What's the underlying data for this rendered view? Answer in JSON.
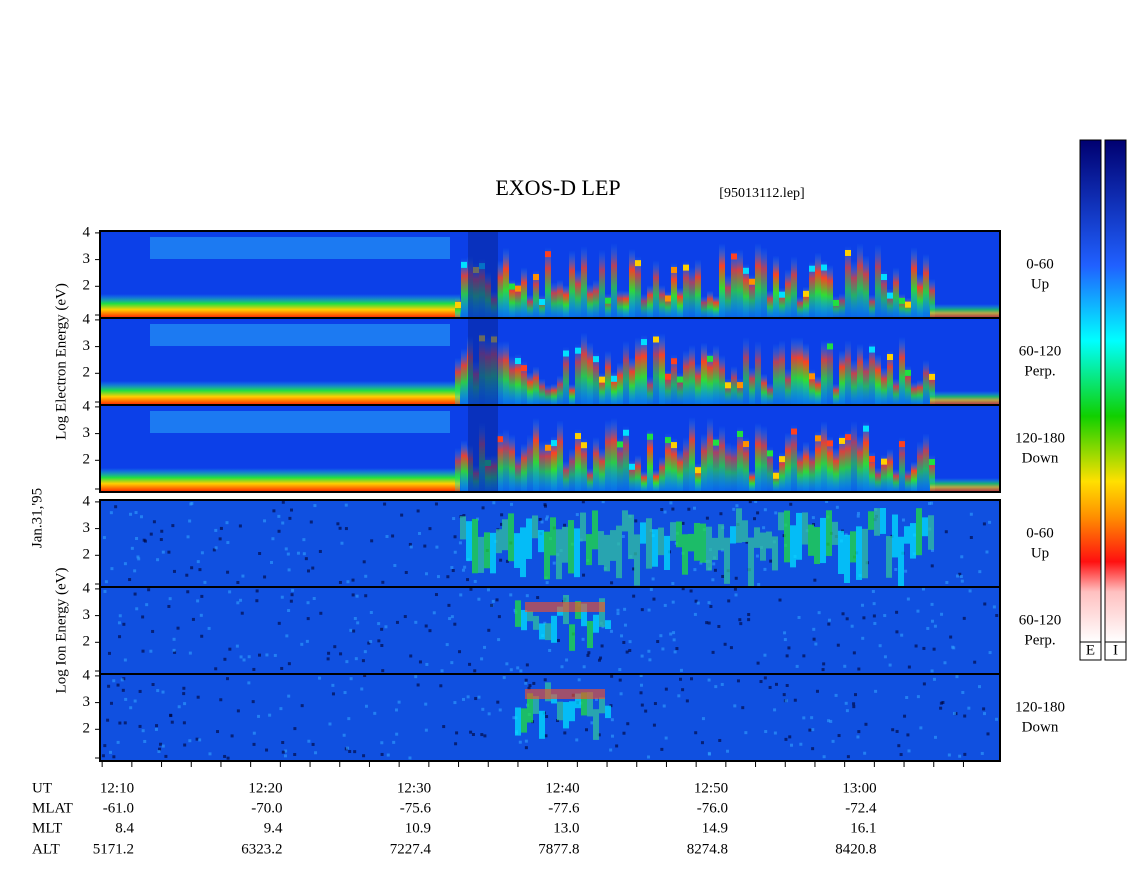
{
  "header": {
    "title": "EXOS-D LEP",
    "file": "[95013112.lep]"
  },
  "date": "Jan.31,'95",
  "groups": [
    {
      "axis_label": "Log Electron Energy (eV)",
      "yticks": [
        4,
        3,
        2
      ],
      "panels": [
        {
          "pitch": "0-60",
          "direction": "Up"
        },
        {
          "pitch": "60-120",
          "direction": "Perp."
        },
        {
          "pitch": "120-180",
          "direction": "Down"
        }
      ]
    },
    {
      "axis_label": "Log Ion Energy (eV)",
      "yticks": [
        4,
        3,
        2
      ],
      "panels": [
        {
          "pitch": "0-60",
          "direction": "Up"
        },
        {
          "pitch": "60-120",
          "direction": "Perp."
        },
        {
          "pitch": "120-180",
          "direction": "Down"
        }
      ]
    }
  ],
  "orbit": [
    {
      "label": "UT",
      "values": [
        "12:10",
        "12:20",
        "12:30",
        "12:40",
        "12:50",
        "13:00"
      ]
    },
    {
      "label": "MLAT",
      "values": [
        "-61.0",
        "-70.0",
        "-75.6",
        "-77.6",
        "-76.0",
        "-72.4"
      ]
    },
    {
      "label": "MLT",
      "values": [
        "8.4",
        "9.4",
        "10.9",
        "13.0",
        "14.9",
        "16.1"
      ]
    },
    {
      "label": "ALT",
      "values": [
        "5171.2",
        "6323.2",
        "7227.4",
        "7877.8",
        "8274.8",
        "8420.8"
      ]
    }
  ],
  "colorbars": [
    "E",
    "I"
  ]
}
